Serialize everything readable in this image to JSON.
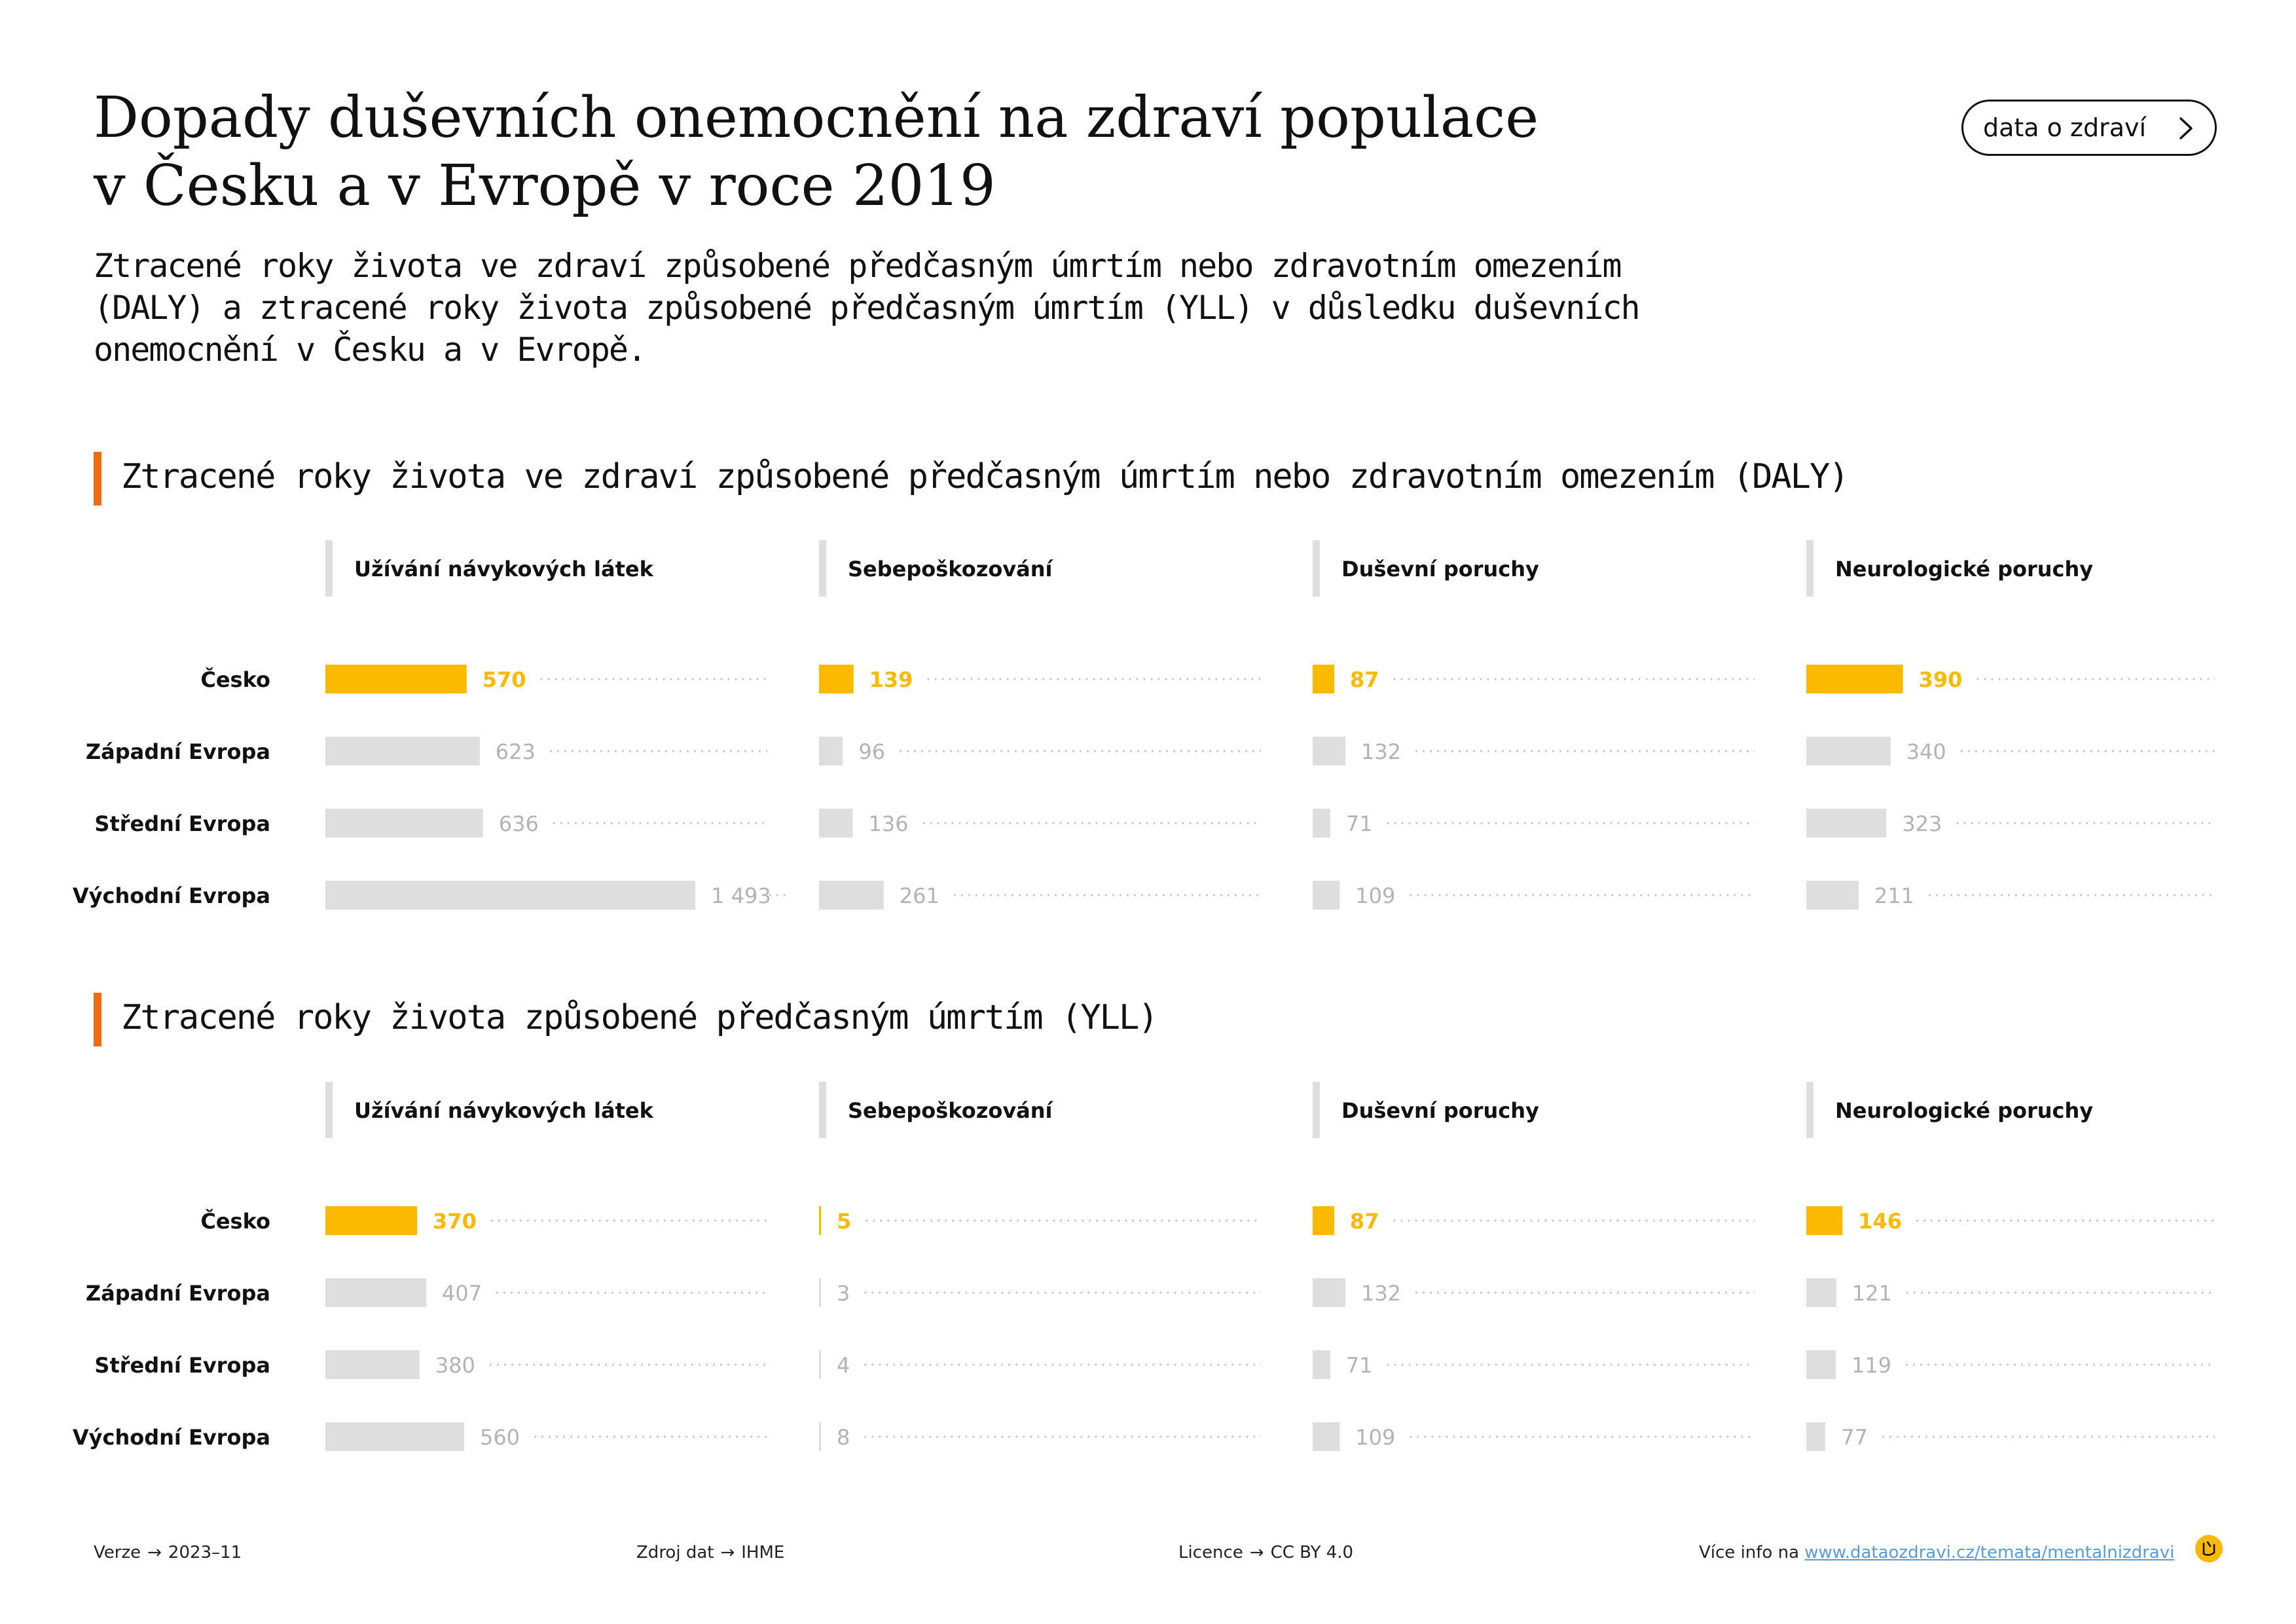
{
  "header": {
    "title_line1": "Dopady duševních onemocnění na zdraví populace",
    "title_line2": "v Česku a v Evropě v roce 2019",
    "subtitle_line1": "Ztracené roky života ve zdraví způsobené předčasným úmrtím nebo zdravotním omezením",
    "subtitle_line2": "(DALY) a ztracené roky života způsobené předčasným úmrtím (YLL) v důsledku duševních",
    "subtitle_line3": "onemocnění v Česku a v Evropě.",
    "button_label": "data o zdraví",
    "button_icon": "chevron-right-icon"
  },
  "colors": {
    "highlight": "#fbb900",
    "neutral": "#dedede",
    "neutral_label": "#b3b3b3",
    "accent": "#f26a12"
  },
  "chart_data": [
    {
      "type": "bar",
      "title": "Ztracené roky života ve zdraví způsobené předčasným úmrtím nebo zdravotním omezením (DALY)",
      "categories": [
        "Česko",
        "Západní Evropa",
        "Střední Evropa",
        "Východní Evropa"
      ],
      "highlight_category": "Česko",
      "panels": [
        {
          "name": "Užívání návykových látek",
          "values": [
            570,
            623,
            636,
            1493
          ],
          "labels": [
            "570",
            "623",
            "636",
            "1 493"
          ]
        },
        {
          "name": "Sebepoškozování",
          "values": [
            139,
            96,
            136,
            261
          ],
          "labels": [
            "139",
            "96",
            "136",
            "261"
          ]
        },
        {
          "name": "Duševní poruchy",
          "values": [
            87,
            132,
            71,
            109
          ],
          "labels": [
            "87",
            "132",
            "71",
            "109"
          ]
        },
        {
          "name": "Neurologické poruchy",
          "values": [
            390,
            340,
            323,
            211
          ],
          "labels": [
            "390",
            "340",
            "323",
            "211"
          ]
        }
      ]
    },
    {
      "type": "bar",
      "title": "Ztracené roky života způsobené předčasným úmrtím (YLL)",
      "categories": [
        "Česko",
        "Západní Evropa",
        "Střední Evropa",
        "Východní Evropa"
      ],
      "highlight_category": "Česko",
      "panels": [
        {
          "name": "Užívání návykových látek",
          "values": [
            370,
            407,
            380,
            560
          ],
          "labels": [
            "370",
            "407",
            "380",
            "560"
          ]
        },
        {
          "name": "Sebepoškozování",
          "values": [
            5,
            3,
            4,
            8
          ],
          "labels": [
            "5",
            "3",
            "4",
            "8"
          ]
        },
        {
          "name": "Duševní poruchy",
          "values": [
            87,
            132,
            71,
            109
          ],
          "labels": [
            "87",
            "132",
            "71",
            "109"
          ]
        },
        {
          "name": "Neurologické poruchy",
          "values": [
            146,
            121,
            119,
            77
          ],
          "labels": [
            "146",
            "121",
            "119",
            "77"
          ]
        }
      ]
    }
  ],
  "footer": {
    "version_label": "Verze",
    "version_value": "2023–11",
    "source_label": "Zdroj dat",
    "source_value": "IHME",
    "license_label": "Licence",
    "license_value": "CC BY 4.0",
    "more_label": "Více info na",
    "more_link": "www.dataozdravi.cz/temata/mentalnizdravi",
    "arrow": "→",
    "logo_icon": "dataozdravi-logo-icon"
  }
}
